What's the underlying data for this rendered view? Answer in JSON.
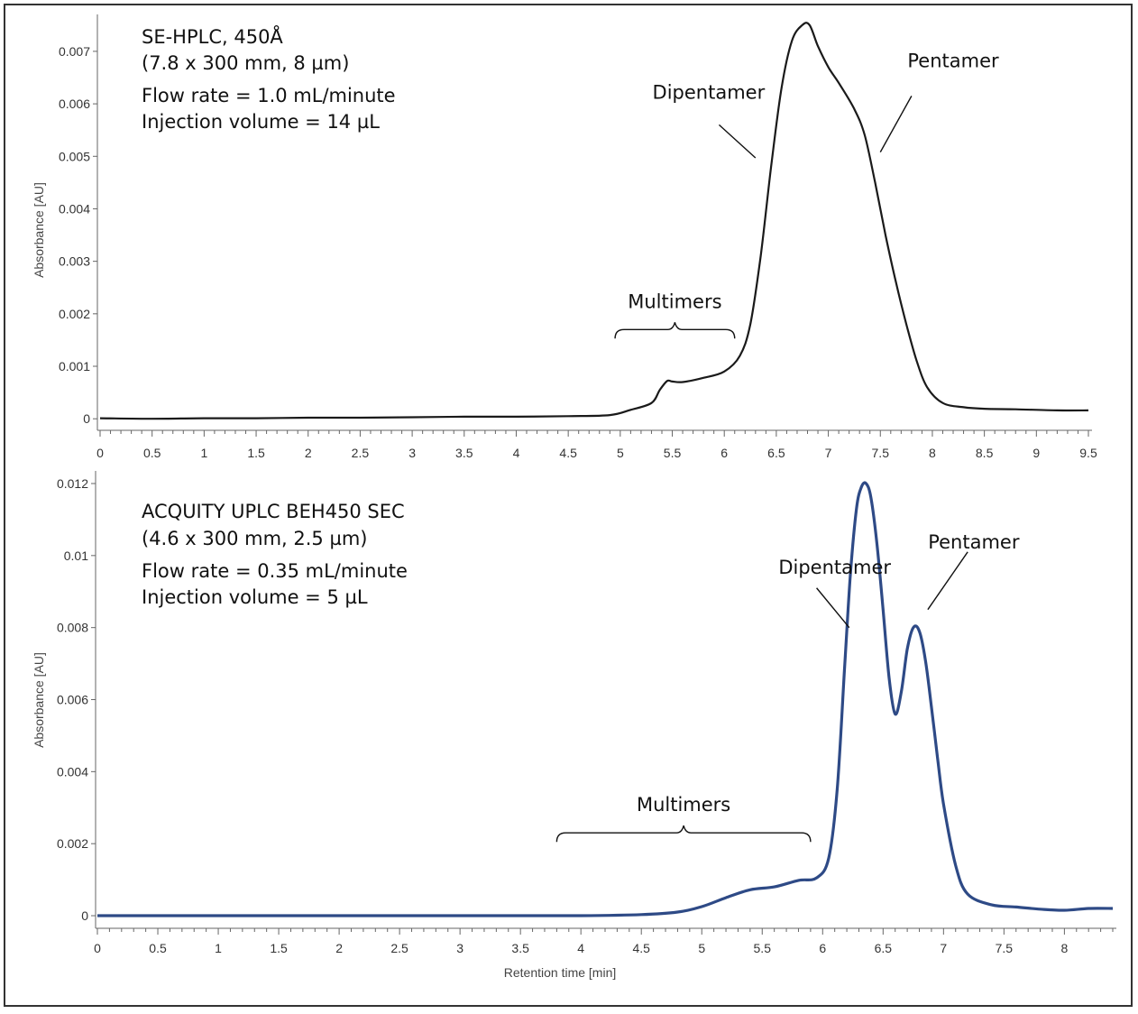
{
  "chart_data": [
    {
      "type": "line",
      "panel": "top",
      "info_lines": [
        "SE-HPLC, 450Å",
        "(7.8 x 300 mm, 8 µm)",
        "Flow rate = 1.0 mL/minute",
        "Injection volume = 14 µL"
      ],
      "ylabel": "Absorbance [AU]",
      "xlabel": "",
      "xlim": [
        0,
        9.5
      ],
      "ylim": [
        -0.00022,
        0.0076
      ],
      "x_ticks": [
        0,
        0.5,
        1,
        1.5,
        2,
        2.5,
        3,
        3.5,
        4,
        4.5,
        5,
        5.5,
        6,
        6.5,
        7,
        7.5,
        8,
        8.5,
        9,
        9.5
      ],
      "y_ticks": [
        0,
        0.001,
        0.002,
        0.003,
        0.004,
        0.005,
        0.006,
        0.007
      ],
      "y_tick_labels": [
        "0",
        "0.001",
        "0.002",
        "0.003",
        "0.004",
        "0.005",
        "0.006",
        "0.007"
      ],
      "line_color": "#1a1a1a",
      "annotations": [
        {
          "text": "Multimers",
          "type": "brace",
          "x1": 4.95,
          "x2": 6.1,
          "y": 0.0017
        },
        {
          "text": "Dipentamer",
          "type": "leader",
          "tx": 5.85,
          "ty": 0.0061,
          "lx1": 5.95,
          "ly1": 0.0056,
          "lx2": 6.3,
          "ly2": 0.00497
        },
        {
          "text": "Pentamer",
          "type": "leader",
          "tx": 8.2,
          "ty": 0.0067,
          "lx1": 7.8,
          "ly1": 0.00615,
          "lx2": 7.5,
          "ly2": 0.00508
        }
      ],
      "series": [
        {
          "x": [
            0,
            0.5,
            1,
            1.5,
            2,
            2.5,
            3,
            3.5,
            4,
            4.5,
            4.9,
            5.1,
            5.3,
            5.38,
            5.45,
            5.5,
            5.6,
            5.8,
            6.0,
            6.15,
            6.25,
            6.35,
            6.45,
            6.55,
            6.65,
            6.75,
            6.82,
            6.9,
            7.0,
            7.1,
            7.25,
            7.35,
            7.45,
            7.55,
            7.65,
            7.75,
            7.85,
            7.95,
            8.1,
            8.3,
            8.5,
            8.8,
            9.2,
            9.5
          ],
          "y": [
            1e-05,
            0.0,
            1e-05,
            1e-05,
            2e-05,
            2e-05,
            3e-05,
            4e-05,
            4e-05,
            5e-05,
            7e-05,
            0.00017,
            0.0003,
            0.00055,
            0.00072,
            0.00071,
            0.0007,
            0.00078,
            0.0009,
            0.0012,
            0.0018,
            0.0031,
            0.0048,
            0.0063,
            0.0072,
            0.0075,
            0.0075,
            0.0071,
            0.0067,
            0.0064,
            0.0059,
            0.0054,
            0.0045,
            0.0035,
            0.0026,
            0.0018,
            0.0011,
            0.0006,
            0.0003,
            0.00022,
            0.00019,
            0.00018,
            0.00016,
            0.00016
          ]
        }
      ]
    },
    {
      "type": "line",
      "panel": "bottom",
      "info_lines": [
        "ACQUITY UPLC BEH450 SEC",
        "(4.6 x 300 mm, 2.5 µm)",
        "Flow rate = 0.35 mL/minute",
        "Injection volume = 5 µL"
      ],
      "ylabel": "Absorbance [AU]",
      "xlabel": "Retention time [min]",
      "xlim": [
        0,
        8.4
      ],
      "ylim": [
        -0.00035,
        0.0122
      ],
      "x_ticks": [
        0,
        0.5,
        1,
        1.5,
        2,
        2.5,
        3,
        3.5,
        4,
        4.5,
        5,
        5.5,
        6,
        6.5,
        7,
        7.5,
        8
      ],
      "y_ticks": [
        0,
        0.002,
        0.004,
        0.006,
        0.008,
        0.01,
        0.012
      ],
      "y_tick_labels": [
        "0",
        "0.002",
        "0.004",
        "0.006",
        "0.008",
        "0.01",
        "0.012"
      ],
      "line_color": "#2e4a86",
      "annotations": [
        {
          "text": "Multimers",
          "type": "brace",
          "x1": 3.8,
          "x2": 5.9,
          "y": 0.0023
        },
        {
          "text": "Dipentamer",
          "type": "leader",
          "tx": 6.1,
          "ty": 0.0095,
          "lx1": 5.95,
          "ly1": 0.0091,
          "lx2": 6.22,
          "ly2": 0.008
        },
        {
          "text": "Pentamer",
          "type": "leader",
          "tx": 7.25,
          "ty": 0.0102,
          "lx1": 7.2,
          "ly1": 0.0101,
          "lx2": 6.87,
          "ly2": 0.0085
        }
      ],
      "series": [
        {
          "x": [
            0,
            0.5,
            1,
            1.5,
            2,
            2.5,
            3,
            3.5,
            4,
            4.5,
            4.8,
            5.0,
            5.2,
            5.4,
            5.6,
            5.8,
            5.95,
            6.05,
            6.12,
            6.18,
            6.23,
            6.28,
            6.32,
            6.36,
            6.4,
            6.45,
            6.5,
            6.55,
            6.6,
            6.65,
            6.7,
            6.75,
            6.8,
            6.85,
            6.9,
            6.95,
            7.0,
            7.1,
            7.2,
            7.4,
            7.6,
            7.8,
            8.0,
            8.2,
            8.4
          ],
          "y": [
            0.0,
            0.0,
            0.0,
            0.0,
            0.0,
            0.0,
            0.0,
            0.0,
            0.0,
            3e-05,
            0.0001,
            0.00025,
            0.0005,
            0.00072,
            0.0008,
            0.00098,
            0.00105,
            0.0016,
            0.0035,
            0.0068,
            0.0095,
            0.0113,
            0.0119,
            0.012,
            0.0116,
            0.0103,
            0.0085,
            0.0066,
            0.0056,
            0.0062,
            0.0074,
            0.008,
            0.0079,
            0.0071,
            0.0058,
            0.0044,
            0.0031,
            0.0014,
            0.0006,
            0.0003,
            0.00024,
            0.00018,
            0.00015,
            0.0002,
            0.0002
          ]
        }
      ]
    }
  ]
}
